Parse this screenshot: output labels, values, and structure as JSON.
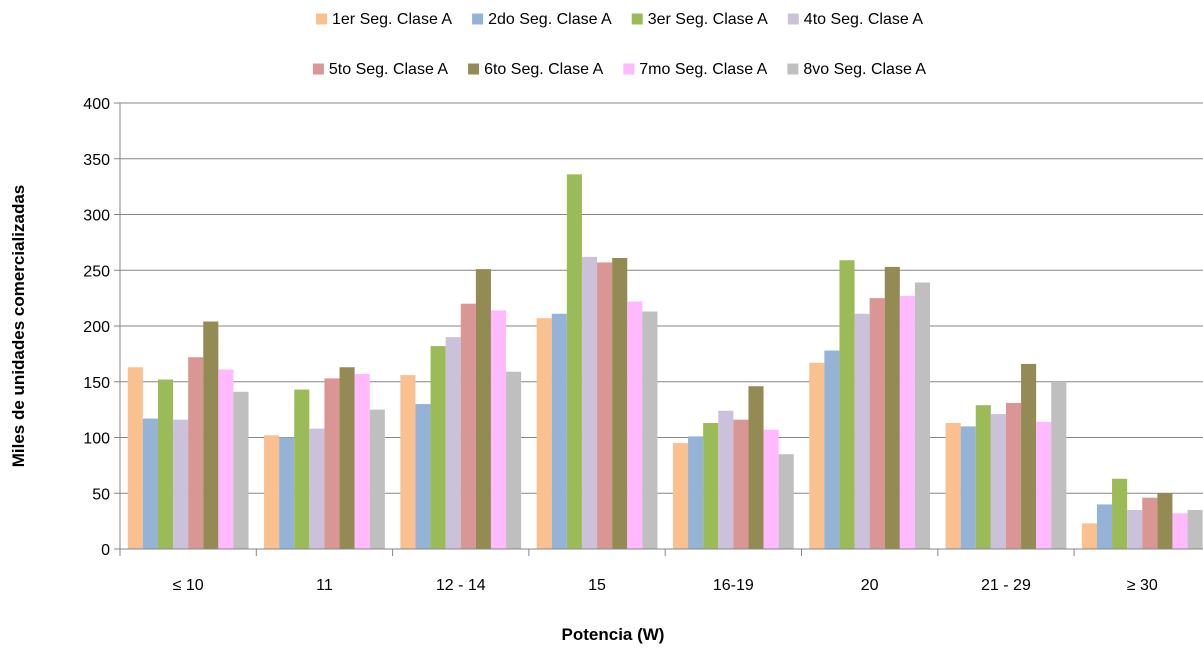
{
  "chart_data": {
    "type": "bar",
    "xlabel": "Potencia (W)",
    "ylabel": "Miles de unidades comercializadas",
    "ylim": [
      0,
      400
    ],
    "yticks": [
      0,
      50,
      100,
      150,
      200,
      250,
      300,
      350,
      400
    ],
    "grid": true,
    "legend_position": "top",
    "categories": [
      "≤ 10",
      "11",
      "12 - 14",
      "15",
      "16-19",
      "20",
      "21 - 29",
      "≥ 30"
    ],
    "series": [
      {
        "name": "1er Seg. Clase A",
        "color": "#FAC090",
        "values": [
          163,
          102,
          156,
          207,
          95,
          167,
          113,
          23
        ]
      },
      {
        "name": "2do Seg. Clase A",
        "color": "#95B3D7",
        "values": [
          117,
          100,
          130,
          211,
          101,
          178,
          110,
          40
        ]
      },
      {
        "name": "3er Seg. Clase A",
        "color": "#9BBB59",
        "values": [
          152,
          143,
          182,
          336,
          113,
          259,
          129,
          63
        ]
      },
      {
        "name": "4to Seg. Clase A",
        "color": "#CCC1DA",
        "values": [
          116,
          108,
          190,
          262,
          124,
          211,
          121,
          35
        ]
      },
      {
        "name": "5to Seg. Clase A",
        "color": "#D99694",
        "values": [
          172,
          153,
          220,
          257,
          116,
          225,
          131,
          46
        ]
      },
      {
        "name": "6to Seg. Clase A",
        "color": "#948A54",
        "values": [
          204,
          163,
          251,
          261,
          146,
          253,
          166,
          50
        ]
      },
      {
        "name": "7mo Seg. Clase A",
        "color": "#FFB9FF",
        "values": [
          161,
          157,
          214,
          222,
          107,
          227,
          114,
          32
        ]
      },
      {
        "name": "8vo Seg. Clase A",
        "color": "#BFBFBF",
        "values": [
          141,
          125,
          159,
          213,
          85,
          239,
          150,
          35
        ]
      }
    ]
  }
}
